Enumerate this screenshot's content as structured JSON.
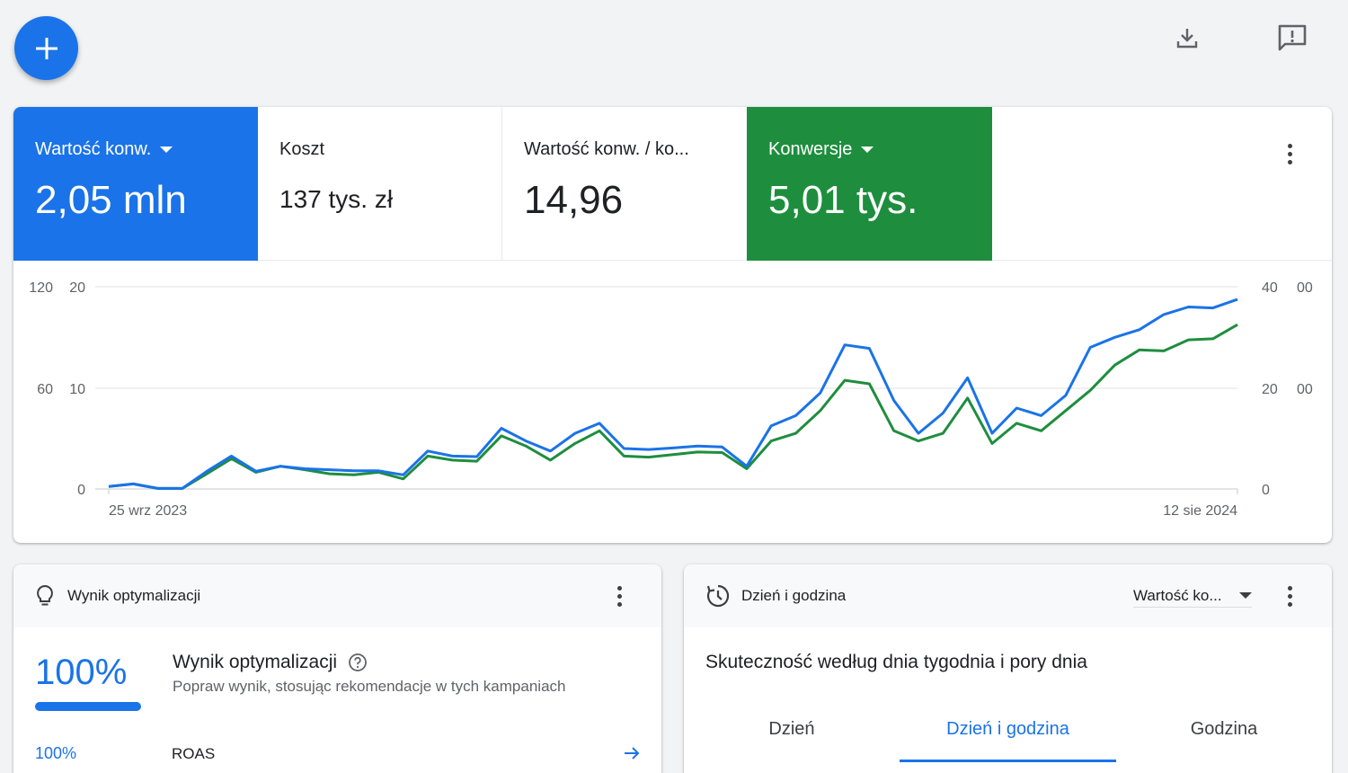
{
  "icons": {
    "fab": "add-icon",
    "download": "download-icon",
    "feedback": "feedback-icon"
  },
  "colors": {
    "blue": "#1a73e8",
    "green": "#1e8e3e"
  },
  "metrics": [
    {
      "label": "Wartość konw.",
      "value": "2,05 mln",
      "selected": "blue",
      "dropdown": true
    },
    {
      "label": "Koszt",
      "value": "137 tys. zł",
      "selected": "none",
      "dropdown": false
    },
    {
      "label": "Wartość konw. / ko...",
      "value": "14,96",
      "selected": "none",
      "dropdown": false
    },
    {
      "label": "Konwersje",
      "value": "5,01 tys.",
      "selected": "green",
      "dropdown": true
    }
  ],
  "chart_data": {
    "type": "line",
    "x_labels": [
      "25 wrz 2023",
      "12 sie 2024"
    ],
    "left_ticks_outer": [
      "120",
      "60",
      "0"
    ],
    "left_ticks_inner": [
      "20",
      "10"
    ],
    "right_ticks": [
      "40",
      "20",
      "0"
    ],
    "right_ticks_clipped": [
      "00",
      "00"
    ],
    "ylim": [
      0,
      40
    ],
    "series": [
      {
        "color": "#1a73e8",
        "values": [
          0.5,
          1.0,
          0.1,
          0.1,
          3.5,
          6.5,
          3.5,
          4.5,
          4.0,
          3.8,
          3.6,
          3.6,
          2.8,
          7.5,
          6.5,
          6.4,
          12.0,
          9.5,
          7.5,
          11.0,
          13.0,
          8.0,
          7.8,
          8.1,
          8.5,
          8.3,
          4.5,
          12.5,
          14.5,
          19.0,
          28.5,
          27.8,
          17.5,
          11.0,
          15.0,
          22.0,
          11.0,
          16.0,
          14.5,
          18.5,
          28.0,
          30.0,
          31.5,
          34.5,
          36.0,
          35.8,
          37.5
        ]
      },
      {
        "color": "#1e8e3e",
        "values": [
          0.5,
          1.0,
          0.1,
          0.1,
          3.0,
          6.0,
          3.3,
          4.5,
          3.8,
          3.0,
          2.8,
          3.3,
          2.0,
          6.5,
          5.7,
          5.5,
          10.5,
          8.5,
          5.7,
          9.0,
          11.5,
          6.5,
          6.3,
          6.8,
          7.3,
          7.2,
          4.0,
          9.5,
          11.0,
          15.5,
          21.5,
          20.8,
          11.5,
          9.5,
          11.0,
          18.0,
          9.0,
          13.0,
          11.5,
          15.5,
          19.5,
          24.5,
          27.5,
          27.3,
          29.5,
          29.7,
          32.5
        ]
      }
    ]
  },
  "optimization": {
    "header_title": "Wynik optymalizacji",
    "header_icon": "lightbulb-icon",
    "percent": "100%",
    "progress": 1.0,
    "title": "Wynik optymalizacji",
    "help_icon": "help-icon",
    "subtitle": "Popraw wynik, stosując rekomendacje w tych kampaniach",
    "row": {
      "percent": "100%",
      "label": "ROAS",
      "icon": "arrow-right-icon"
    }
  },
  "day_time": {
    "header_title": "Dzień i godzina",
    "header_icon": "schedule-icon",
    "dropdown_value": "Wartość ko...",
    "title": "Skuteczność według dnia tygodnia i pory dnia",
    "tabs": [
      {
        "label": "Dzień",
        "active": false
      },
      {
        "label": "Dzień i godzina",
        "active": true
      },
      {
        "label": "Godzina",
        "active": false
      }
    ]
  }
}
